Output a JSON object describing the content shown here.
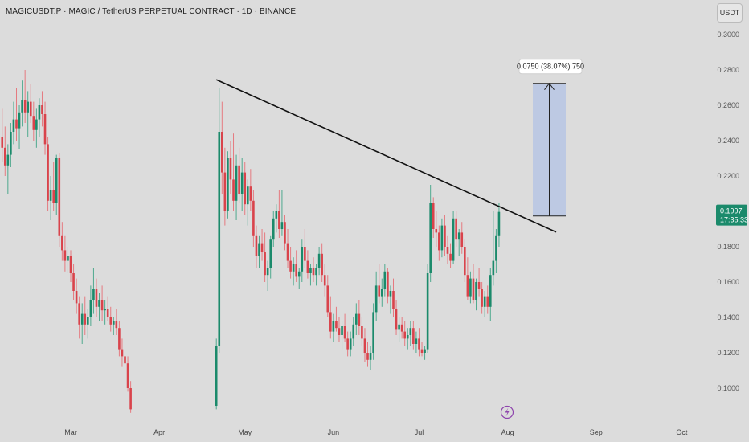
{
  "header": {
    "title": "MAGICUSDT.P · MAGIC / TetherUS PERPETUAL CONTRACT · 1D · BINANCE",
    "currency": "USDT"
  },
  "price_tag": {
    "price": "0.1997",
    "countdown": "17:35:33",
    "color": "#1b8a6b"
  },
  "measure": {
    "label": "0.0750 (38.07%) 750",
    "from": 0.1974,
    "to": 0.2724
  },
  "trendline": {
    "from": {
      "date": "2024-04-20",
      "price": 0.2745
    },
    "to": {
      "date": "2024-08-17",
      "price": 0.1883
    }
  },
  "colors": {
    "up": "#1b8a6b",
    "down": "#d9434b",
    "wick_up": "#4fa98e",
    "wick_down": "#e57a80",
    "measure_fill": "#b7c6e4",
    "measure_line": "#8fa4cf"
  },
  "chart_data": {
    "type": "candlestick",
    "title": "MAGICUSDT.P · MAGIC / TetherUS PERPETUAL CONTRACT · 1D · BINANCE",
    "ylim": [
      0.085,
      0.305
    ],
    "y_ticks": [
      0.3,
      0.28,
      0.26,
      0.24,
      0.22,
      0.2,
      0.18,
      0.16,
      0.14,
      0.12,
      0.1
    ],
    "x_ticks": [
      "Mar",
      "Apr",
      "May",
      "Jun",
      "Jul",
      "Aug",
      "Sep",
      "Oct"
    ],
    "grid": false,
    "series": [
      {
        "segment": 1,
        "start_date": "2024-02-05",
        "ohlc": [
          [
            0.242,
            0.258,
            0.228,
            0.236
          ],
          [
            0.236,
            0.248,
            0.22,
            0.226
          ],
          [
            0.226,
            0.238,
            0.21,
            0.232
          ],
          [
            0.232,
            0.25,
            0.225,
            0.245
          ],
          [
            0.245,
            0.262,
            0.238,
            0.252
          ],
          [
            0.252,
            0.27,
            0.24,
            0.247
          ],
          [
            0.247,
            0.26,
            0.235,
            0.256
          ],
          [
            0.256,
            0.274,
            0.248,
            0.263
          ],
          [
            0.263,
            0.28,
            0.25,
            0.256
          ],
          [
            0.256,
            0.268,
            0.242,
            0.262
          ],
          [
            0.262,
            0.272,
            0.25,
            0.254
          ],
          [
            0.254,
            0.262,
            0.24,
            0.246
          ],
          [
            0.246,
            0.258,
            0.236,
            0.252
          ],
          [
            0.252,
            0.264,
            0.242,
            0.26
          ],
          [
            0.26,
            0.268,
            0.248,
            0.255
          ],
          [
            0.255,
            0.262,
            0.232,
            0.238
          ],
          [
            0.238,
            0.242,
            0.2,
            0.206
          ],
          [
            0.206,
            0.22,
            0.195,
            0.212
          ],
          [
            0.212,
            0.228,
            0.2,
            0.205
          ],
          [
            0.205,
            0.232,
            0.198,
            0.23
          ],
          [
            0.23,
            0.233,
            0.18,
            0.186
          ],
          [
            0.186,
            0.194,
            0.172,
            0.178
          ],
          [
            0.178,
            0.186,
            0.166,
            0.172
          ],
          [
            0.172,
            0.18,
            0.165,
            0.175
          ],
          [
            0.175,
            0.178,
            0.16,
            0.165
          ],
          [
            0.165,
            0.17,
            0.15,
            0.155
          ],
          [
            0.155,
            0.162,
            0.142,
            0.148
          ],
          [
            0.148,
            0.152,
            0.128,
            0.136
          ],
          [
            0.136,
            0.148,
            0.125,
            0.142
          ],
          [
            0.142,
            0.152,
            0.13,
            0.136
          ],
          [
            0.136,
            0.145,
            0.128,
            0.14
          ],
          [
            0.14,
            0.158,
            0.135,
            0.15
          ],
          [
            0.15,
            0.168,
            0.142,
            0.156
          ],
          [
            0.156,
            0.162,
            0.14,
            0.146
          ],
          [
            0.146,
            0.154,
            0.138,
            0.15
          ],
          [
            0.15,
            0.158,
            0.138,
            0.144
          ],
          [
            0.144,
            0.15,
            0.136,
            0.145
          ],
          [
            0.145,
            0.152,
            0.138,
            0.14
          ],
          [
            0.14,
            0.146,
            0.132,
            0.136
          ],
          [
            0.136,
            0.14,
            0.13,
            0.138
          ],
          [
            0.138,
            0.145,
            0.13,
            0.134
          ],
          [
            0.134,
            0.138,
            0.118,
            0.122
          ],
          [
            0.122,
            0.128,
            0.112,
            0.118
          ],
          [
            0.118,
            0.12,
            0.11,
            0.114
          ],
          [
            0.114,
            0.118,
            0.098,
            0.1
          ],
          [
            0.1,
            0.104,
            0.086,
            0.088
          ]
        ]
      },
      {
        "segment": 2,
        "start_date": "2024-04-20",
        "ohlc": [
          [
            0.09,
            0.128,
            0.088,
            0.124
          ],
          [
            0.124,
            0.27,
            0.12,
            0.245
          ],
          [
            0.245,
            0.262,
            0.21,
            0.222
          ],
          [
            0.222,
            0.236,
            0.192,
            0.2
          ],
          [
            0.2,
            0.234,
            0.196,
            0.23
          ],
          [
            0.23,
            0.24,
            0.21,
            0.218
          ],
          [
            0.218,
            0.244,
            0.2,
            0.206
          ],
          [
            0.206,
            0.232,
            0.195,
            0.226
          ],
          [
            0.226,
            0.236,
            0.205,
            0.21
          ],
          [
            0.21,
            0.23,
            0.2,
            0.222
          ],
          [
            0.222,
            0.228,
            0.198,
            0.204
          ],
          [
            0.204,
            0.218,
            0.192,
            0.214
          ],
          [
            0.214,
            0.224,
            0.2,
            0.206
          ],
          [
            0.206,
            0.212,
            0.18,
            0.186
          ],
          [
            0.186,
            0.192,
            0.168,
            0.175
          ],
          [
            0.175,
            0.186,
            0.168,
            0.182
          ],
          [
            0.182,
            0.19,
            0.172,
            0.177
          ],
          [
            0.177,
            0.188,
            0.16,
            0.164
          ],
          [
            0.164,
            0.172,
            0.155,
            0.168
          ],
          [
            0.168,
            0.186,
            0.162,
            0.184
          ],
          [
            0.184,
            0.2,
            0.18,
            0.196
          ],
          [
            0.196,
            0.204,
            0.188,
            0.2
          ],
          [
            0.2,
            0.212,
            0.185,
            0.19
          ],
          [
            0.19,
            0.212,
            0.186,
            0.194
          ],
          [
            0.194,
            0.198,
            0.178,
            0.182
          ],
          [
            0.182,
            0.19,
            0.168,
            0.172
          ],
          [
            0.172,
            0.18,
            0.162,
            0.166
          ],
          [
            0.166,
            0.174,
            0.158,
            0.17
          ],
          [
            0.17,
            0.178,
            0.16,
            0.163
          ],
          [
            0.163,
            0.168,
            0.156,
            0.166
          ],
          [
            0.166,
            0.184,
            0.16,
            0.18
          ],
          [
            0.18,
            0.19,
            0.168,
            0.172
          ],
          [
            0.172,
            0.178,
            0.162,
            0.165
          ],
          [
            0.165,
            0.17,
            0.158,
            0.168
          ],
          [
            0.168,
            0.174,
            0.16,
            0.164
          ],
          [
            0.164,
            0.17,
            0.158,
            0.168
          ],
          [
            0.168,
            0.18,
            0.164,
            0.176
          ],
          [
            0.176,
            0.182,
            0.16,
            0.164
          ],
          [
            0.164,
            0.17,
            0.152,
            0.158
          ],
          [
            0.158,
            0.164,
            0.14,
            0.143
          ],
          [
            0.143,
            0.152,
            0.128,
            0.132
          ],
          [
            0.132,
            0.142,
            0.126,
            0.138
          ],
          [
            0.138,
            0.146,
            0.132,
            0.134
          ],
          [
            0.134,
            0.14,
            0.126,
            0.13
          ],
          [
            0.13,
            0.138,
            0.122,
            0.135
          ],
          [
            0.135,
            0.142,
            0.126,
            0.128
          ],
          [
            0.128,
            0.132,
            0.118,
            0.122
          ],
          [
            0.122,
            0.132,
            0.118,
            0.128
          ],
          [
            0.128,
            0.14,
            0.124,
            0.136
          ],
          [
            0.136,
            0.148,
            0.13,
            0.142
          ],
          [
            0.142,
            0.15,
            0.13,
            0.135
          ],
          [
            0.135,
            0.14,
            0.124,
            0.128
          ],
          [
            0.128,
            0.134,
            0.115,
            0.12
          ],
          [
            0.12,
            0.126,
            0.112,
            0.116
          ],
          [
            0.116,
            0.124,
            0.11,
            0.12
          ],
          [
            0.12,
            0.148,
            0.116,
            0.143
          ],
          [
            0.143,
            0.166,
            0.138,
            0.158
          ],
          [
            0.158,
            0.17,
            0.148,
            0.152
          ],
          [
            0.152,
            0.162,
            0.146,
            0.156
          ],
          [
            0.156,
            0.17,
            0.152,
            0.166
          ],
          [
            0.166,
            0.168,
            0.148,
            0.152
          ],
          [
            0.152,
            0.158,
            0.142,
            0.155
          ],
          [
            0.155,
            0.162,
            0.14,
            0.145
          ],
          [
            0.145,
            0.15,
            0.13,
            0.133
          ],
          [
            0.133,
            0.14,
            0.126,
            0.136
          ],
          [
            0.136,
            0.14,
            0.128,
            0.132
          ],
          [
            0.132,
            0.138,
            0.124,
            0.128
          ],
          [
            0.128,
            0.134,
            0.122,
            0.13
          ],
          [
            0.13,
            0.138,
            0.124,
            0.134
          ],
          [
            0.134,
            0.138,
            0.122,
            0.125
          ],
          [
            0.125,
            0.132,
            0.12,
            0.128
          ],
          [
            0.128,
            0.134,
            0.118,
            0.122
          ],
          [
            0.122,
            0.126,
            0.118,
            0.12
          ],
          [
            0.12,
            0.124,
            0.116,
            0.122
          ],
          [
            0.122,
            0.17,
            0.12,
            0.165
          ],
          [
            0.165,
            0.215,
            0.16,
            0.205
          ],
          [
            0.205,
            0.208,
            0.185,
            0.19
          ],
          [
            0.19,
            0.2,
            0.18,
            0.188
          ],
          [
            0.188,
            0.192,
            0.172,
            0.178
          ],
          [
            0.178,
            0.196,
            0.174,
            0.192
          ],
          [
            0.192,
            0.198,
            0.175,
            0.18
          ],
          [
            0.18,
            0.186,
            0.17,
            0.176
          ],
          [
            0.176,
            0.182,
            0.168,
            0.172
          ],
          [
            0.172,
            0.2,
            0.17,
            0.196
          ],
          [
            0.196,
            0.2,
            0.18,
            0.184
          ],
          [
            0.184,
            0.19,
            0.175,
            0.188
          ],
          [
            0.188,
            0.194,
            0.176,
            0.18
          ],
          [
            0.18,
            0.184,
            0.16,
            0.164
          ],
          [
            0.164,
            0.174,
            0.15,
            0.152
          ],
          [
            0.152,
            0.166,
            0.148,
            0.162
          ],
          [
            0.162,
            0.17,
            0.148,
            0.15
          ],
          [
            0.15,
            0.162,
            0.144,
            0.16
          ],
          [
            0.16,
            0.168,
            0.152,
            0.156
          ],
          [
            0.156,
            0.16,
            0.142,
            0.146
          ],
          [
            0.146,
            0.155,
            0.14,
            0.152
          ],
          [
            0.152,
            0.158,
            0.142,
            0.146
          ],
          [
            0.146,
            0.168,
            0.138,
            0.164
          ],
          [
            0.164,
            0.2,
            0.158,
            0.172
          ],
          [
            0.172,
            0.19,
            0.165,
            0.186
          ],
          [
            0.186,
            0.205,
            0.18,
            0.1997
          ]
        ]
      }
    ]
  }
}
